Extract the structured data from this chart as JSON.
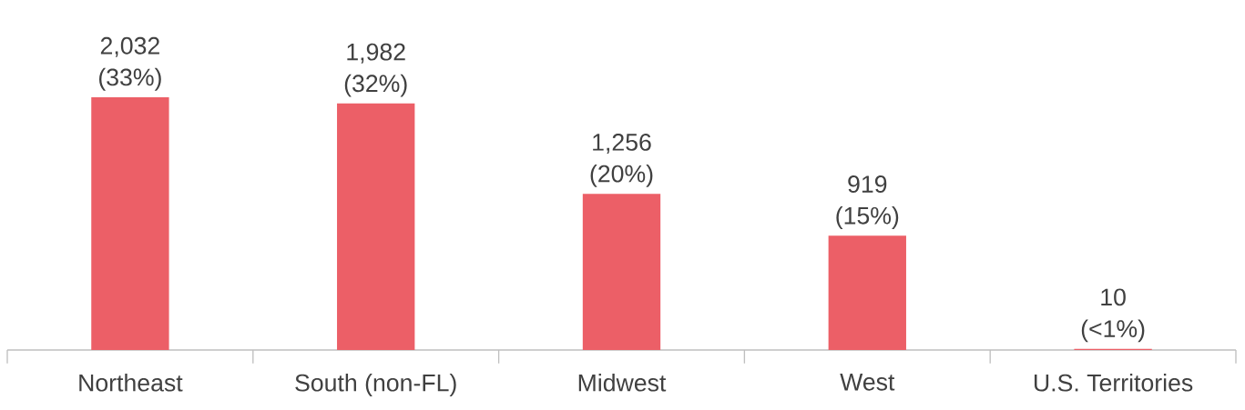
{
  "chart_data": {
    "type": "bar",
    "categories": [
      "Northeast",
      "South (non-FL)",
      "Midwest",
      "West",
      "U.S. Territories"
    ],
    "values": [
      2032,
      1982,
      1256,
      919,
      10
    ],
    "value_labels": [
      "2,032 (33%)",
      "1,982 (32%)",
      "1,256 (20%)",
      "919 (15%)",
      "10 (<1%)"
    ],
    "color": "#ec5f67"
  }
}
